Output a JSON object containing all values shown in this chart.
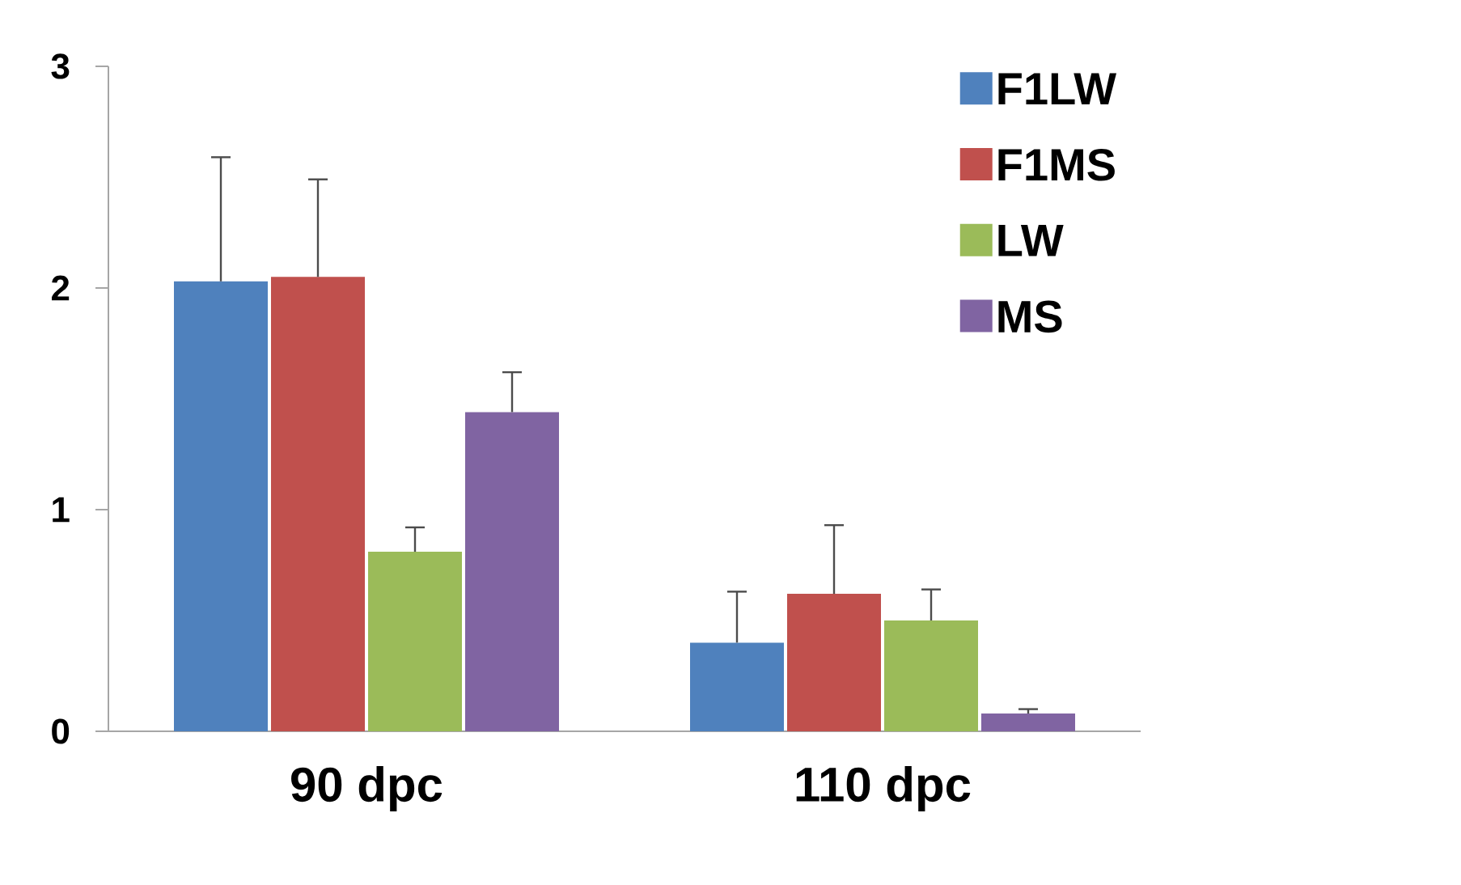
{
  "chart_data": {
    "type": "bar",
    "categories": [
      "90 dpc",
      "110 dpc"
    ],
    "series": [
      {
        "name": "F1LW",
        "color": "#4f81bd",
        "values": [
          2.03,
          0.4
        ],
        "errors": [
          [
            2.03,
            2.59
          ],
          [
            0.4,
            0.63
          ]
        ]
      },
      {
        "name": "F1MS",
        "color": "#c0504d",
        "values": [
          2.05,
          0.62
        ],
        "errors": [
          [
            2.05,
            2.49
          ],
          [
            0.62,
            0.93
          ]
        ]
      },
      {
        "name": "LW",
        "color": "#9bbb59",
        "values": [
          0.81,
          0.5
        ],
        "errors": [
          [
            0.81,
            0.92
          ],
          [
            0.5,
            0.64
          ]
        ]
      },
      {
        "name": "MS",
        "color": "#8064a2",
        "values": [
          1.44,
          0.08
        ],
        "errors": [
          [
            1.44,
            1.62
          ],
          [
            0.08,
            0.1
          ]
        ]
      }
    ],
    "ylim": [
      0,
      3
    ],
    "yticks": [
      0,
      1,
      2,
      3
    ],
    "grid": false,
    "legend": "top right"
  }
}
